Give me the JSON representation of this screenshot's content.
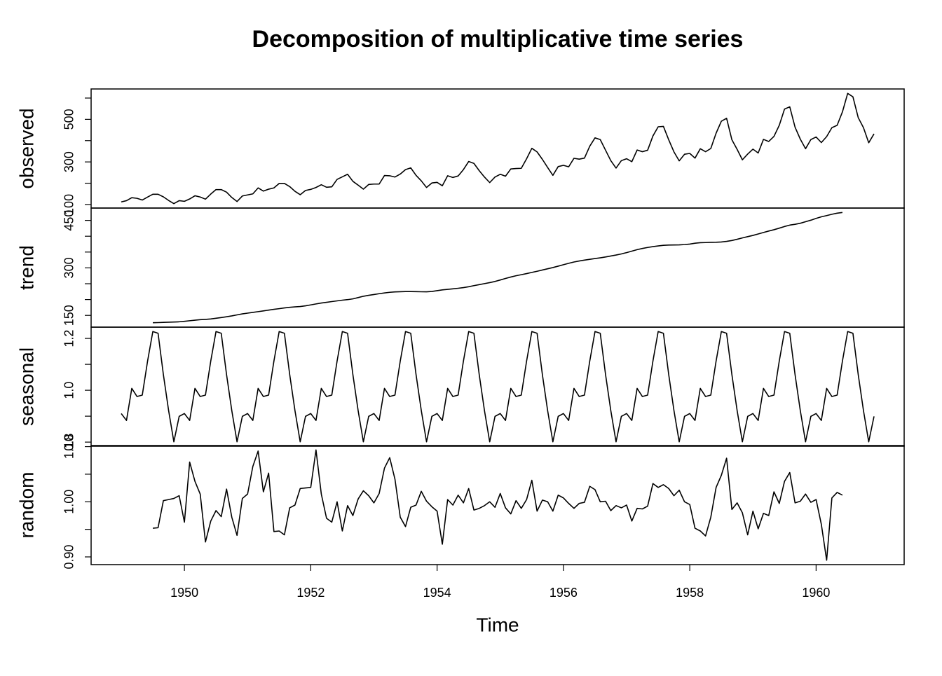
{
  "chart_data": {
    "type": "line",
    "title": "Decomposition of multiplicative time series",
    "xlabel": "Time",
    "color": "#000000",
    "x": [
      1949,
      1949.083,
      1949.167,
      1949.25,
      1949.333,
      1949.417,
      1949.5,
      1949.583,
      1949.667,
      1949.75,
      1949.833,
      1949.917,
      1950,
      1950.083,
      1950.167,
      1950.25,
      1950.333,
      1950.417,
      1950.5,
      1950.583,
      1950.667,
      1950.75,
      1950.833,
      1950.917,
      1951,
      1951.083,
      1951.167,
      1951.25,
      1951.333,
      1951.417,
      1951.5,
      1951.583,
      1951.667,
      1951.75,
      1951.833,
      1951.917,
      1952,
      1952.083,
      1952.167,
      1952.25,
      1952.333,
      1952.417,
      1952.5,
      1952.583,
      1952.667,
      1952.75,
      1952.833,
      1952.917,
      1953,
      1953.083,
      1953.167,
      1953.25,
      1953.333,
      1953.417,
      1953.5,
      1953.583,
      1953.667,
      1953.75,
      1953.833,
      1953.917,
      1954,
      1954.083,
      1954.167,
      1954.25,
      1954.333,
      1954.417,
      1954.5,
      1954.583,
      1954.667,
      1954.75,
      1954.833,
      1954.917,
      1955,
      1955.083,
      1955.167,
      1955.25,
      1955.333,
      1955.417,
      1955.5,
      1955.583,
      1955.667,
      1955.75,
      1955.833,
      1955.917,
      1956,
      1956.083,
      1956.167,
      1956.25,
      1956.333,
      1956.417,
      1956.5,
      1956.583,
      1956.667,
      1956.75,
      1956.833,
      1956.917,
      1957,
      1957.083,
      1957.167,
      1957.25,
      1957.333,
      1957.417,
      1957.5,
      1957.583,
      1957.667,
      1957.75,
      1957.833,
      1957.917,
      1958,
      1958.083,
      1958.167,
      1958.25,
      1958.333,
      1958.417,
      1958.5,
      1958.583,
      1958.667,
      1958.75,
      1958.833,
      1958.917,
      1959,
      1959.083,
      1959.167,
      1959.25,
      1959.333,
      1959.417,
      1959.5,
      1959.583,
      1959.667,
      1959.75,
      1959.833,
      1959.917,
      1960,
      1960.083,
      1960.167,
      1960.25,
      1960.333,
      1960.417,
      1960.5,
      1960.583,
      1960.667,
      1960.75,
      1960.833,
      1960.917
    ],
    "xlim": [
      1948.523,
      1961.394
    ],
    "xticks": [
      1950,
      1952,
      1954,
      1956,
      1958,
      1960
    ],
    "panels": [
      {
        "ylabel": "observed",
        "ylim": [
          83.28,
          642.72
        ],
        "yticks": [
          100,
          300,
          500
        ],
        "minor_yticks": [
          200,
          400,
          600
        ],
        "values": [
          112,
          118,
          132,
          129,
          121,
          135,
          148,
          148,
          136,
          119,
          104,
          118,
          115,
          126,
          141,
          135,
          125,
          149,
          170,
          170,
          158,
          133,
          114,
          140,
          145,
          150,
          178,
          163,
          172,
          178,
          199,
          199,
          184,
          162,
          146,
          166,
          171,
          180,
          193,
          181,
          183,
          218,
          230,
          242,
          209,
          191,
          172,
          194,
          196,
          196,
          236,
          235,
          229,
          243,
          264,
          272,
          237,
          211,
          180,
          201,
          204,
          188,
          235,
          227,
          234,
          264,
          302,
          293,
          259,
          229,
          203,
          229,
          242,
          233,
          267,
          269,
          270,
          315,
          364,
          347,
          312,
          274,
          237,
          278,
          284,
          277,
          317,
          313,
          318,
          374,
          413,
          405,
          355,
          306,
          271,
          306,
          315,
          301,
          356,
          348,
          355,
          422,
          465,
          467,
          404,
          347,
          305,
          336,
          340,
          318,
          362,
          348,
          363,
          435,
          491,
          505,
          404,
          359,
          310,
          337,
          360,
          342,
          406,
          396,
          420,
          472,
          548,
          559,
          463,
          407,
          362,
          405,
          417,
          391,
          419,
          461,
          472,
          535,
          622,
          606,
          508,
          461,
          390,
          432
        ]
      },
      {
        "ylabel": "trend",
        "ylim": [
          112.86,
          488.97
        ],
        "yticks": [
          150,
          300,
          450
        ],
        "minor_yticks": [
          200,
          250,
          350,
          400
        ],
        "values": [
          null,
          null,
          null,
          null,
          null,
          null,
          126.79,
          127.25,
          127.96,
          128.58,
          129.0,
          129.75,
          131.25,
          133.08,
          134.92,
          136.42,
          137.42,
          138.75,
          140.92,
          143.17,
          145.71,
          148.42,
          151.54,
          154.71,
          157.13,
          159.54,
          161.83,
          164.13,
          166.67,
          169.08,
          171.25,
          173.58,
          175.46,
          176.83,
          178.04,
          180.17,
          183.13,
          186.21,
          189.04,
          191.29,
          193.58,
          195.83,
          198.04,
          199.75,
          202.21,
          206.25,
          210.42,
          213.38,
          215.83,
          218.5,
          220.92,
          222.92,
          224.08,
          224.71,
          225.33,
          225.33,
          224.96,
          224.58,
          224.46,
          225.54,
          228.0,
          230.46,
          232.25,
          233.92,
          235.63,
          237.75,
          240.5,
          243.96,
          247.17,
          250.25,
          253.5,
          257.13,
          261.83,
          266.67,
          271.13,
          275.21,
          278.5,
          281.96,
          285.75,
          289.33,
          293.25,
          297.17,
          301.0,
          305.46,
          309.96,
          314.42,
          318.63,
          321.75,
          324.5,
          327.08,
          329.54,
          331.83,
          334.46,
          337.54,
          340.54,
          344.08,
          348.25,
          353.0,
          357.63,
          361.38,
          364.5,
          367.17,
          369.46,
          371.21,
          372.17,
          372.42,
          372.75,
          373.63,
          375.25,
          377.92,
          379.5,
          380.0,
          380.71,
          380.96,
          381.83,
          383.67,
          386.5,
          390.33,
          394.71,
          398.63,
          402.54,
          407.17,
          411.88,
          416.33,
          420.5,
          425.5,
          430.71,
          435.13,
          437.71,
          440.96,
          445.83,
          450.63,
          456.33,
          461.38,
          465.21,
          469.33,
          472.75,
          475.04,
          null,
          null,
          null,
          null,
          null,
          null
        ]
      },
      {
        "ylabel": "seasonal",
        "ylim": [
          0.7841,
          1.2435
        ],
        "yticks": [
          {
            "value": 0.8,
            "label": "0.8"
          },
          {
            "value": 1,
            "label": "1.0"
          },
          {
            "value": 1.2,
            "label": "1.2"
          }
        ],
        "minor_yticks": [
          0.9,
          1.1
        ],
        "values": [
          0.9102,
          0.8836,
          1.0073,
          0.9759,
          0.9814,
          1.1127,
          1.2265,
          1.2199,
          1.0604,
          0.9217,
          0.8011,
          0.8993,
          0.9102,
          0.8836,
          1.0073,
          0.9759,
          0.9814,
          1.1127,
          1.2265,
          1.2199,
          1.0604,
          0.9217,
          0.8011,
          0.8993,
          0.9102,
          0.8836,
          1.0073,
          0.9759,
          0.9814,
          1.1127,
          1.2265,
          1.2199,
          1.0604,
          0.9217,
          0.8011,
          0.8993,
          0.9102,
          0.8836,
          1.0073,
          0.9759,
          0.9814,
          1.1127,
          1.2265,
          1.2199,
          1.0604,
          0.9217,
          0.8011,
          0.8993,
          0.9102,
          0.8836,
          1.0073,
          0.9759,
          0.9814,
          1.1127,
          1.2265,
          1.2199,
          1.0604,
          0.9217,
          0.8011,
          0.8993,
          0.9102,
          0.8836,
          1.0073,
          0.9759,
          0.9814,
          1.1127,
          1.2265,
          1.2199,
          1.0604,
          0.9217,
          0.8011,
          0.8993,
          0.9102,
          0.8836,
          1.0073,
          0.9759,
          0.9814,
          1.1127,
          1.2265,
          1.2199,
          1.0604,
          0.9217,
          0.8011,
          0.8993,
          0.9102,
          0.8836,
          1.0073,
          0.9759,
          0.9814,
          1.1127,
          1.2265,
          1.2199,
          1.0604,
          0.9217,
          0.8011,
          0.8993,
          0.9102,
          0.8836,
          1.0073,
          0.9759,
          0.9814,
          1.1127,
          1.2265,
          1.2199,
          1.0604,
          0.9217,
          0.8011,
          0.8993,
          0.9102,
          0.8836,
          1.0073,
          0.9759,
          0.9814,
          1.1127,
          1.2265,
          1.2199,
          1.0604,
          0.9217,
          0.8011,
          0.8993,
          0.9102,
          0.8836,
          1.0073,
          0.9759,
          0.9814,
          1.1127,
          1.2265,
          1.2199,
          1.0604,
          0.9217,
          0.8011,
          0.8993,
          0.9102,
          0.8836,
          1.0073,
          0.9759,
          0.9814,
          1.1127,
          1.2265,
          1.2199,
          1.0604,
          0.9217,
          0.8011,
          0.8993
        ]
      },
      {
        "ylabel": "random",
        "ylim": [
          0.886,
          1.102
        ],
        "yticks": [
          {
            "value": 0.9,
            "label": "0.90"
          },
          {
            "value": 1,
            "label": "1.00"
          },
          {
            "value": 1.1,
            "label": "1.10"
          }
        ],
        "minor_yticks": [
          0.95,
          1.05
        ],
        "values": [
          null,
          null,
          null,
          null,
          null,
          null,
          0.952,
          0.953,
          1.002,
          1.004,
          1.006,
          1.011,
          0.963,
          1.072,
          1.037,
          1.014,
          0.927,
          0.965,
          0.984,
          0.973,
          1.023,
          0.972,
          0.939,
          1.006,
          1.014,
          1.064,
          1.092,
          1.018,
          1.052,
          0.946,
          0.947,
          0.94,
          0.989,
          0.994,
          1.024,
          1.025,
          1.026,
          1.094,
          1.014,
          0.97,
          0.963,
          1.0,
          0.947,
          0.993,
          0.975,
          1.005,
          1.02,
          1.011,
          0.998,
          1.015,
          1.061,
          1.08,
          1.041,
          0.972,
          0.955,
          0.99,
          0.994,
          1.019,
          1.001,
          0.991,
          0.983,
          0.923,
          1.004,
          0.994,
          1.012,
          0.998,
          1.024,
          0.985,
          0.988,
          0.993,
          1.0,
          0.99,
          1.015,
          0.989,
          0.978,
          1.002,
          0.988,
          1.004,
          1.039,
          0.983,
          1.003,
          1.0,
          0.983,
          1.012,
          1.007,
          0.997,
          0.988,
          0.997,
          0.999,
          1.028,
          1.022,
          1.0,
          1.001,
          0.984,
          0.993,
          0.989,
          0.994,
          0.965,
          0.988,
          0.987,
          0.992,
          1.033,
          1.026,
          1.031,
          1.024,
          1.011,
          1.021,
          1.0,
          0.995,
          0.952,
          0.947,
          0.938,
          0.972,
          1.026,
          1.048,
          1.079,
          0.986,
          0.998,
          0.98,
          0.94,
          0.983,
          0.951,
          0.979,
          0.975,
          1.018,
          0.997,
          1.037,
          1.053,
          0.998,
          1.001,
          1.014,
          0.999,
          1.004,
          0.959,
          0.894,
          1.007,
          1.017,
          1.012,
          null,
          null,
          null,
          null,
          null,
          null
        ]
      }
    ]
  }
}
